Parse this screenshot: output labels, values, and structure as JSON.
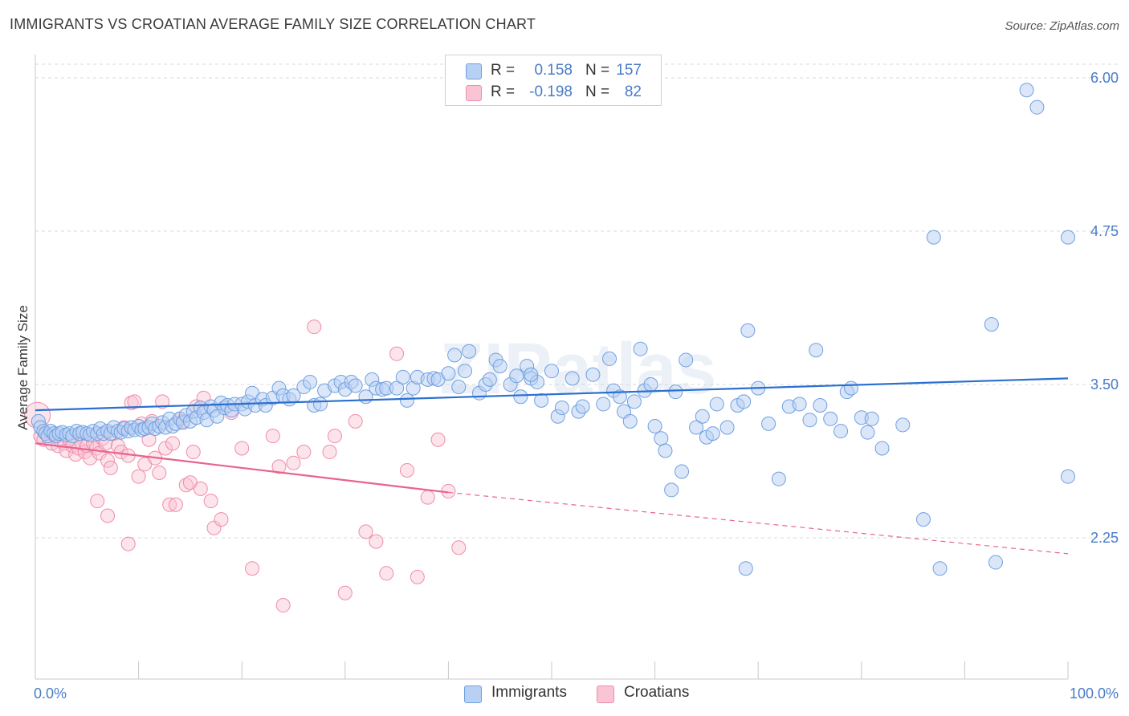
{
  "header": {
    "title": "IMMIGRANTS VS CROATIAN AVERAGE FAMILY SIZE CORRELATION CHART",
    "source": "Source: ZipAtlas.com"
  },
  "watermark": "ZIPatlas",
  "legend": {
    "rows": [
      {
        "label": "R =",
        "r_value": "0.158",
        "n_label": "N =",
        "n_value": "157",
        "color": "#6fa0e0"
      },
      {
        "label": "R =",
        "r_value": "-0.198",
        "n_label": "N =",
        "n_value": "82",
        "color": "#f08cac"
      }
    ]
  },
  "bottom_legend": {
    "immigrants": "Immigrants",
    "croatians": "Croatians"
  },
  "colors": {
    "immigrants_fill": "#b8d0f3",
    "immigrants_stroke": "#6fa0e0",
    "immigrants_line": "#2c6fcf",
    "croatians_fill": "#f9c4d3",
    "croatians_stroke": "#f08cac",
    "croatians_line": "#e8638e",
    "tick_text": "#4a7cc9",
    "grid": "#d8d8d8"
  },
  "chart_data": {
    "type": "scatter",
    "title": "IMMIGRANTS VS CROATIAN AVERAGE FAMILY SIZE CORRELATION CHART",
    "xlabel": "",
    "ylabel": "Average Family Size",
    "xlim": [
      0,
      100
    ],
    "ylim": [
      1.1,
      6.1
    ],
    "x_tick_labels": [
      "0.0%",
      "100.0%"
    ],
    "y_ticks": [
      2.25,
      3.5,
      4.75,
      6.0
    ],
    "y_tick_labels": [
      "2.25",
      "3.50",
      "4.75",
      "6.00"
    ],
    "grid": "horizontal dashed",
    "legend_position": "top-center",
    "series": [
      {
        "name": "Immigrants",
        "r": 0.158,
        "n": 157,
        "trend": {
          "x": [
            0,
            100
          ],
          "y": [
            3.29,
            3.55
          ]
        },
        "points": [
          [
            0.3,
            3.2
          ],
          [
            0.5,
            3.15
          ],
          [
            0.8,
            3.12
          ],
          [
            1.0,
            3.1
          ],
          [
            1.2,
            3.08
          ],
          [
            1.5,
            3.12
          ],
          [
            1.8,
            3.1
          ],
          [
            2.0,
            3.08
          ],
          [
            2.3,
            3.1
          ],
          [
            2.6,
            3.11
          ],
          [
            3.0,
            3.09
          ],
          [
            3.3,
            3.1
          ],
          [
            3.6,
            3.08
          ],
          [
            4.0,
            3.12
          ],
          [
            4.3,
            3.1
          ],
          [
            4.6,
            3.11
          ],
          [
            5.0,
            3.1
          ],
          [
            5.3,
            3.09
          ],
          [
            5.6,
            3.12
          ],
          [
            6.0,
            3.1
          ],
          [
            6.3,
            3.14
          ],
          [
            6.6,
            3.1
          ],
          [
            7.0,
            3.12
          ],
          [
            7.3,
            3.1
          ],
          [
            7.6,
            3.15
          ],
          [
            8.0,
            3.12
          ],
          [
            8.3,
            3.11
          ],
          [
            8.6,
            3.14
          ],
          [
            9.0,
            3.12
          ],
          [
            9.3,
            3.15
          ],
          [
            9.6,
            3.13
          ],
          [
            10.0,
            3.16
          ],
          [
            10.3,
            3.13
          ],
          [
            10.6,
            3.14
          ],
          [
            11.0,
            3.15
          ],
          [
            11.3,
            3.18
          ],
          [
            11.6,
            3.14
          ],
          [
            12.0,
            3.16
          ],
          [
            12.3,
            3.19
          ],
          [
            12.6,
            3.15
          ],
          [
            13.0,
            3.22
          ],
          [
            13.3,
            3.16
          ],
          [
            13.6,
            3.18
          ],
          [
            14.0,
            3.22
          ],
          [
            14.3,
            3.19
          ],
          [
            14.6,
            3.25
          ],
          [
            15.0,
            3.2
          ],
          [
            15.3,
            3.28
          ],
          [
            15.6,
            3.23
          ],
          [
            16.0,
            3.31
          ],
          [
            16.3,
            3.27
          ],
          [
            16.6,
            3.21
          ],
          [
            17.0,
            3.32
          ],
          [
            17.3,
            3.29
          ],
          [
            17.6,
            3.24
          ],
          [
            18.0,
            3.35
          ],
          [
            18.3,
            3.31
          ],
          [
            18.6,
            3.33
          ],
          [
            19.0,
            3.29
          ],
          [
            19.3,
            3.34
          ],
          [
            20.0,
            3.34
          ],
          [
            20.3,
            3.3
          ],
          [
            20.6,
            3.36
          ],
          [
            21.0,
            3.43
          ],
          [
            21.3,
            3.33
          ],
          [
            22.0,
            3.38
          ],
          [
            22.3,
            3.33
          ],
          [
            23.0,
            3.39
          ],
          [
            23.6,
            3.47
          ],
          [
            24.0,
            3.41
          ],
          [
            24.6,
            3.38
          ],
          [
            25.0,
            3.41
          ],
          [
            26.0,
            3.48
          ],
          [
            26.6,
            3.52
          ],
          [
            27.0,
            3.33
          ],
          [
            27.6,
            3.34
          ],
          [
            28.0,
            3.45
          ],
          [
            29.0,
            3.49
          ],
          [
            29.6,
            3.52
          ],
          [
            30.0,
            3.46
          ],
          [
            30.6,
            3.52
          ],
          [
            31.0,
            3.49
          ],
          [
            32.0,
            3.4
          ],
          [
            32.6,
            3.54
          ],
          [
            33.0,
            3.47
          ],
          [
            33.6,
            3.46
          ],
          [
            34.0,
            3.47
          ],
          [
            35.0,
            3.47
          ],
          [
            35.6,
            3.56
          ],
          [
            36.0,
            3.37
          ],
          [
            36.6,
            3.47
          ],
          [
            37.0,
            3.56
          ],
          [
            38.0,
            3.54
          ],
          [
            38.6,
            3.55
          ],
          [
            39.0,
            3.54
          ],
          [
            40.0,
            3.59
          ],
          [
            40.6,
            3.74
          ],
          [
            41.0,
            3.48
          ],
          [
            41.6,
            3.61
          ],
          [
            42.0,
            3.77
          ],
          [
            43.0,
            3.43
          ],
          [
            43.6,
            3.5
          ],
          [
            44.0,
            3.54
          ],
          [
            44.6,
            3.7
          ],
          [
            45.0,
            3.65
          ],
          [
            46.0,
            3.5
          ],
          [
            46.6,
            3.57
          ],
          [
            47.0,
            3.4
          ],
          [
            47.6,
            3.65
          ],
          [
            48.0,
            3.55
          ],
          [
            48.6,
            3.52
          ],
          [
            49.0,
            3.37
          ],
          [
            50.0,
            3.61
          ],
          [
            50.6,
            3.24
          ],
          [
            51.0,
            3.31
          ],
          [
            52.0,
            3.55
          ],
          [
            52.6,
            3.28
          ],
          [
            53.0,
            3.32
          ],
          [
            54.0,
            3.58
          ],
          [
            55.0,
            3.34
          ],
          [
            55.6,
            3.71
          ],
          [
            56.0,
            3.45
          ],
          [
            56.6,
            3.4
          ],
          [
            57.0,
            3.28
          ],
          [
            57.6,
            3.2
          ],
          [
            58.0,
            3.36
          ],
          [
            58.6,
            3.79
          ],
          [
            59.0,
            3.45
          ],
          [
            59.6,
            3.5
          ],
          [
            60.0,
            3.16
          ],
          [
            60.6,
            3.06
          ],
          [
            61.0,
            2.96
          ],
          [
            61.6,
            2.64
          ],
          [
            62.0,
            3.44
          ],
          [
            62.6,
            2.79
          ],
          [
            63.0,
            3.7
          ],
          [
            64.0,
            3.15
          ],
          [
            64.6,
            3.24
          ],
          [
            65.0,
            3.07
          ],
          [
            65.6,
            3.1
          ],
          [
            66.0,
            3.34
          ],
          [
            67.0,
            3.15
          ],
          [
            68.0,
            3.33
          ],
          [
            68.6,
            3.36
          ],
          [
            69.0,
            3.94
          ],
          [
            70.0,
            3.47
          ],
          [
            71.0,
            3.18
          ],
          [
            72.0,
            2.73
          ],
          [
            73.0,
            3.32
          ],
          [
            74.0,
            3.34
          ],
          [
            75.0,
            3.21
          ],
          [
            75.6,
            3.78
          ],
          [
            76.0,
            3.33
          ],
          [
            77.0,
            3.22
          ],
          [
            78.0,
            3.12
          ],
          [
            78.6,
            3.44
          ],
          [
            79.0,
            3.47
          ],
          [
            80.0,
            3.23
          ],
          [
            80.6,
            3.11
          ],
          [
            81.0,
            3.22
          ],
          [
            82.0,
            2.98
          ],
          [
            84.0,
            3.17
          ],
          [
            86.0,
            2.4
          ],
          [
            87.6,
            2.0
          ],
          [
            92.6,
            3.99
          ],
          [
            100.0,
            2.75
          ],
          [
            93.0,
            2.05
          ],
          [
            96.0,
            5.9
          ],
          [
            97.0,
            5.76
          ],
          [
            100.0,
            4.7
          ],
          [
            87.0,
            4.7
          ],
          [
            68.8,
            2.0
          ],
          [
            48.0,
            3.58
          ]
        ]
      },
      {
        "name": "Croatians",
        "r": -0.198,
        "n": 82,
        "trend": {
          "x": [
            0,
            40
          ],
          "y": [
            3.02,
            2.62
          ]
        },
        "trend_dashed": {
          "x": [
            40,
            100
          ],
          "y": [
            2.62,
            2.12
          ]
        },
        "points": [
          [
            0.2,
            3.25
          ],
          [
            0.5,
            3.08
          ],
          [
            0.8,
            3.05
          ],
          [
            1.0,
            3.1
          ],
          [
            1.3,
            3.06
          ],
          [
            1.6,
            3.02
          ],
          [
            1.9,
            3.08
          ],
          [
            2.2,
            3.0
          ],
          [
            2.5,
            3.04
          ],
          [
            2.8,
            3.02
          ],
          [
            3.0,
            2.96
          ],
          [
            3.3,
            3.05
          ],
          [
            3.6,
            3.0
          ],
          [
            3.9,
            2.93
          ],
          [
            4.2,
            2.98
          ],
          [
            4.5,
            3.02
          ],
          [
            4.8,
            2.95
          ],
          [
            5.0,
            3.0
          ],
          [
            5.3,
            2.9
          ],
          [
            5.6,
            3.02
          ],
          [
            5.9,
            2.98
          ],
          [
            6.2,
            2.94
          ],
          [
            6.5,
            3.06
          ],
          [
            6.8,
            3.02
          ],
          [
            7.0,
            2.88
          ],
          [
            7.3,
            2.82
          ],
          [
            7.6,
            3.1
          ],
          [
            8.0,
            3.0
          ],
          [
            8.3,
            2.95
          ],
          [
            8.6,
            3.15
          ],
          [
            9.0,
            2.92
          ],
          [
            9.3,
            3.35
          ],
          [
            9.6,
            3.36
          ],
          [
            10.0,
            2.75
          ],
          [
            10.3,
            3.18
          ],
          [
            10.6,
            2.85
          ],
          [
            11.0,
            3.05
          ],
          [
            11.3,
            3.2
          ],
          [
            11.6,
            2.9
          ],
          [
            12.0,
            2.78
          ],
          [
            12.3,
            3.36
          ],
          [
            12.6,
            2.98
          ],
          [
            13.0,
            2.52
          ],
          [
            13.3,
            3.02
          ],
          [
            13.6,
            2.52
          ],
          [
            14.0,
            3.22
          ],
          [
            14.3,
            3.2
          ],
          [
            14.6,
            2.68
          ],
          [
            15.0,
            2.7
          ],
          [
            15.3,
            2.95
          ],
          [
            15.6,
            3.32
          ],
          [
            16.0,
            2.65
          ],
          [
            16.3,
            3.39
          ],
          [
            17.0,
            2.55
          ],
          [
            17.3,
            2.33
          ],
          [
            18.0,
            2.4
          ],
          [
            19.0,
            3.27
          ],
          [
            20.0,
            2.98
          ],
          [
            21.0,
            2.0
          ],
          [
            23.0,
            3.08
          ],
          [
            23.6,
            2.83
          ],
          [
            24.0,
            1.7
          ],
          [
            25.0,
            2.86
          ],
          [
            26.0,
            2.95
          ],
          [
            27.0,
            3.97
          ],
          [
            28.5,
            2.95
          ],
          [
            29.0,
            3.08
          ],
          [
            30.0,
            1.8
          ],
          [
            31.0,
            3.2
          ],
          [
            32.0,
            2.3
          ],
          [
            33.0,
            2.22
          ],
          [
            34.0,
            1.96
          ],
          [
            35.0,
            3.75
          ],
          [
            36.0,
            2.8
          ],
          [
            37.0,
            1.93
          ],
          [
            38.0,
            2.58
          ],
          [
            39.0,
            3.05
          ],
          [
            40.0,
            2.63
          ],
          [
            41.0,
            2.17
          ],
          [
            6.0,
            2.55
          ],
          [
            7.0,
            2.43
          ],
          [
            9.0,
            2.2
          ]
        ]
      }
    ]
  }
}
